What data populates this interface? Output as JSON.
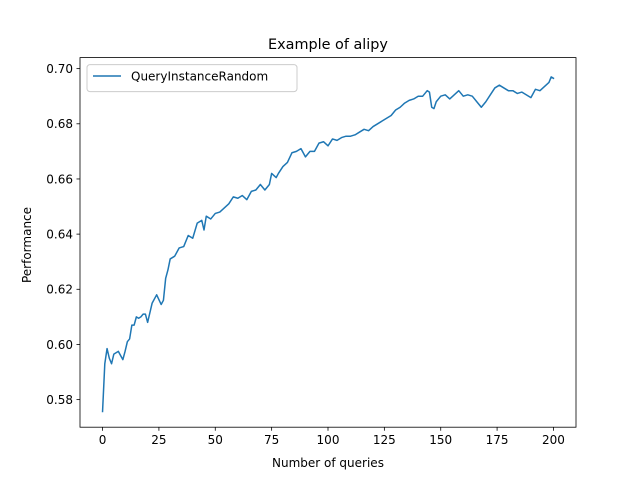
{
  "chart_data": {
    "type": "line",
    "title": "Example of alipy",
    "xlabel": "Number of queries",
    "ylabel": "Performance",
    "xlim": [
      -10,
      210
    ],
    "ylim": [
      0.57,
      0.704
    ],
    "xticks": [
      0,
      25,
      50,
      75,
      100,
      125,
      150,
      175,
      200
    ],
    "xtick_labels": [
      "0",
      "25",
      "50",
      "75",
      "100",
      "125",
      "150",
      "175",
      "200"
    ],
    "yticks": [
      0.58,
      0.6,
      0.62,
      0.64,
      0.66,
      0.68,
      0.7
    ],
    "ytick_labels": [
      "0.58",
      "0.60",
      "0.62",
      "0.64",
      "0.66",
      "0.68",
      "0.70"
    ],
    "grid": false,
    "legend_position": "top-left",
    "series": [
      {
        "name": "QueryInstanceRandom",
        "color": "#1f77b4",
        "x": [
          0,
          1,
          2,
          3,
          4,
          5,
          6,
          7,
          8,
          9,
          10,
          11,
          12,
          13,
          14,
          15,
          16,
          17,
          18,
          19,
          20,
          22,
          24,
          26,
          27,
          28,
          29,
          30,
          32,
          34,
          36,
          38,
          40,
          42,
          44,
          45,
          46,
          48,
          50,
          52,
          54,
          56,
          58,
          60,
          62,
          64,
          66,
          68,
          70,
          72,
          74,
          75,
          77,
          78,
          80,
          82,
          84,
          86,
          88,
          90,
          92,
          94,
          96,
          98,
          100,
          102,
          104,
          106,
          108,
          110,
          112,
          114,
          116,
          118,
          120,
          122,
          124,
          126,
          128,
          130,
          132,
          134,
          136,
          138,
          140,
          142,
          144,
          145,
          146,
          147,
          148,
          150,
          152,
          154,
          156,
          158,
          160,
          162,
          164,
          166,
          168,
          170,
          172,
          174,
          176,
          178,
          180,
          182,
          184,
          186,
          188,
          190,
          192,
          194,
          196,
          198,
          199,
          200
        ],
        "y": [
          0.5757,
          0.593,
          0.5985,
          0.595,
          0.593,
          0.5965,
          0.597,
          0.5975,
          0.596,
          0.5945,
          0.5975,
          0.601,
          0.602,
          0.607,
          0.607,
          0.61,
          0.6095,
          0.61,
          0.611,
          0.611,
          0.608,
          0.615,
          0.618,
          0.6145,
          0.616,
          0.624,
          0.627,
          0.631,
          0.632,
          0.635,
          0.6355,
          0.6395,
          0.6385,
          0.644,
          0.645,
          0.6415,
          0.6465,
          0.6455,
          0.6475,
          0.648,
          0.6495,
          0.651,
          0.6535,
          0.653,
          0.654,
          0.6525,
          0.6555,
          0.656,
          0.658,
          0.656,
          0.658,
          0.662,
          0.6605,
          0.662,
          0.6645,
          0.666,
          0.6695,
          0.67,
          0.671,
          0.668,
          0.67,
          0.67,
          0.673,
          0.6735,
          0.672,
          0.6745,
          0.674,
          0.675,
          0.6755,
          0.6755,
          0.676,
          0.677,
          0.678,
          0.6775,
          0.679,
          0.68,
          0.681,
          0.682,
          0.683,
          0.685,
          0.686,
          0.6875,
          0.6885,
          0.689,
          0.69,
          0.69,
          0.692,
          0.6915,
          0.686,
          0.6855,
          0.688,
          0.69,
          0.6905,
          0.689,
          0.6905,
          0.692,
          0.69,
          0.6905,
          0.69,
          0.688,
          0.686,
          0.688,
          0.6905,
          0.693,
          0.694,
          0.693,
          0.692,
          0.692,
          0.691,
          0.6915,
          0.6905,
          0.6895,
          0.6925,
          0.692,
          0.6935,
          0.695,
          0.697,
          0.6965
        ]
      }
    ]
  }
}
